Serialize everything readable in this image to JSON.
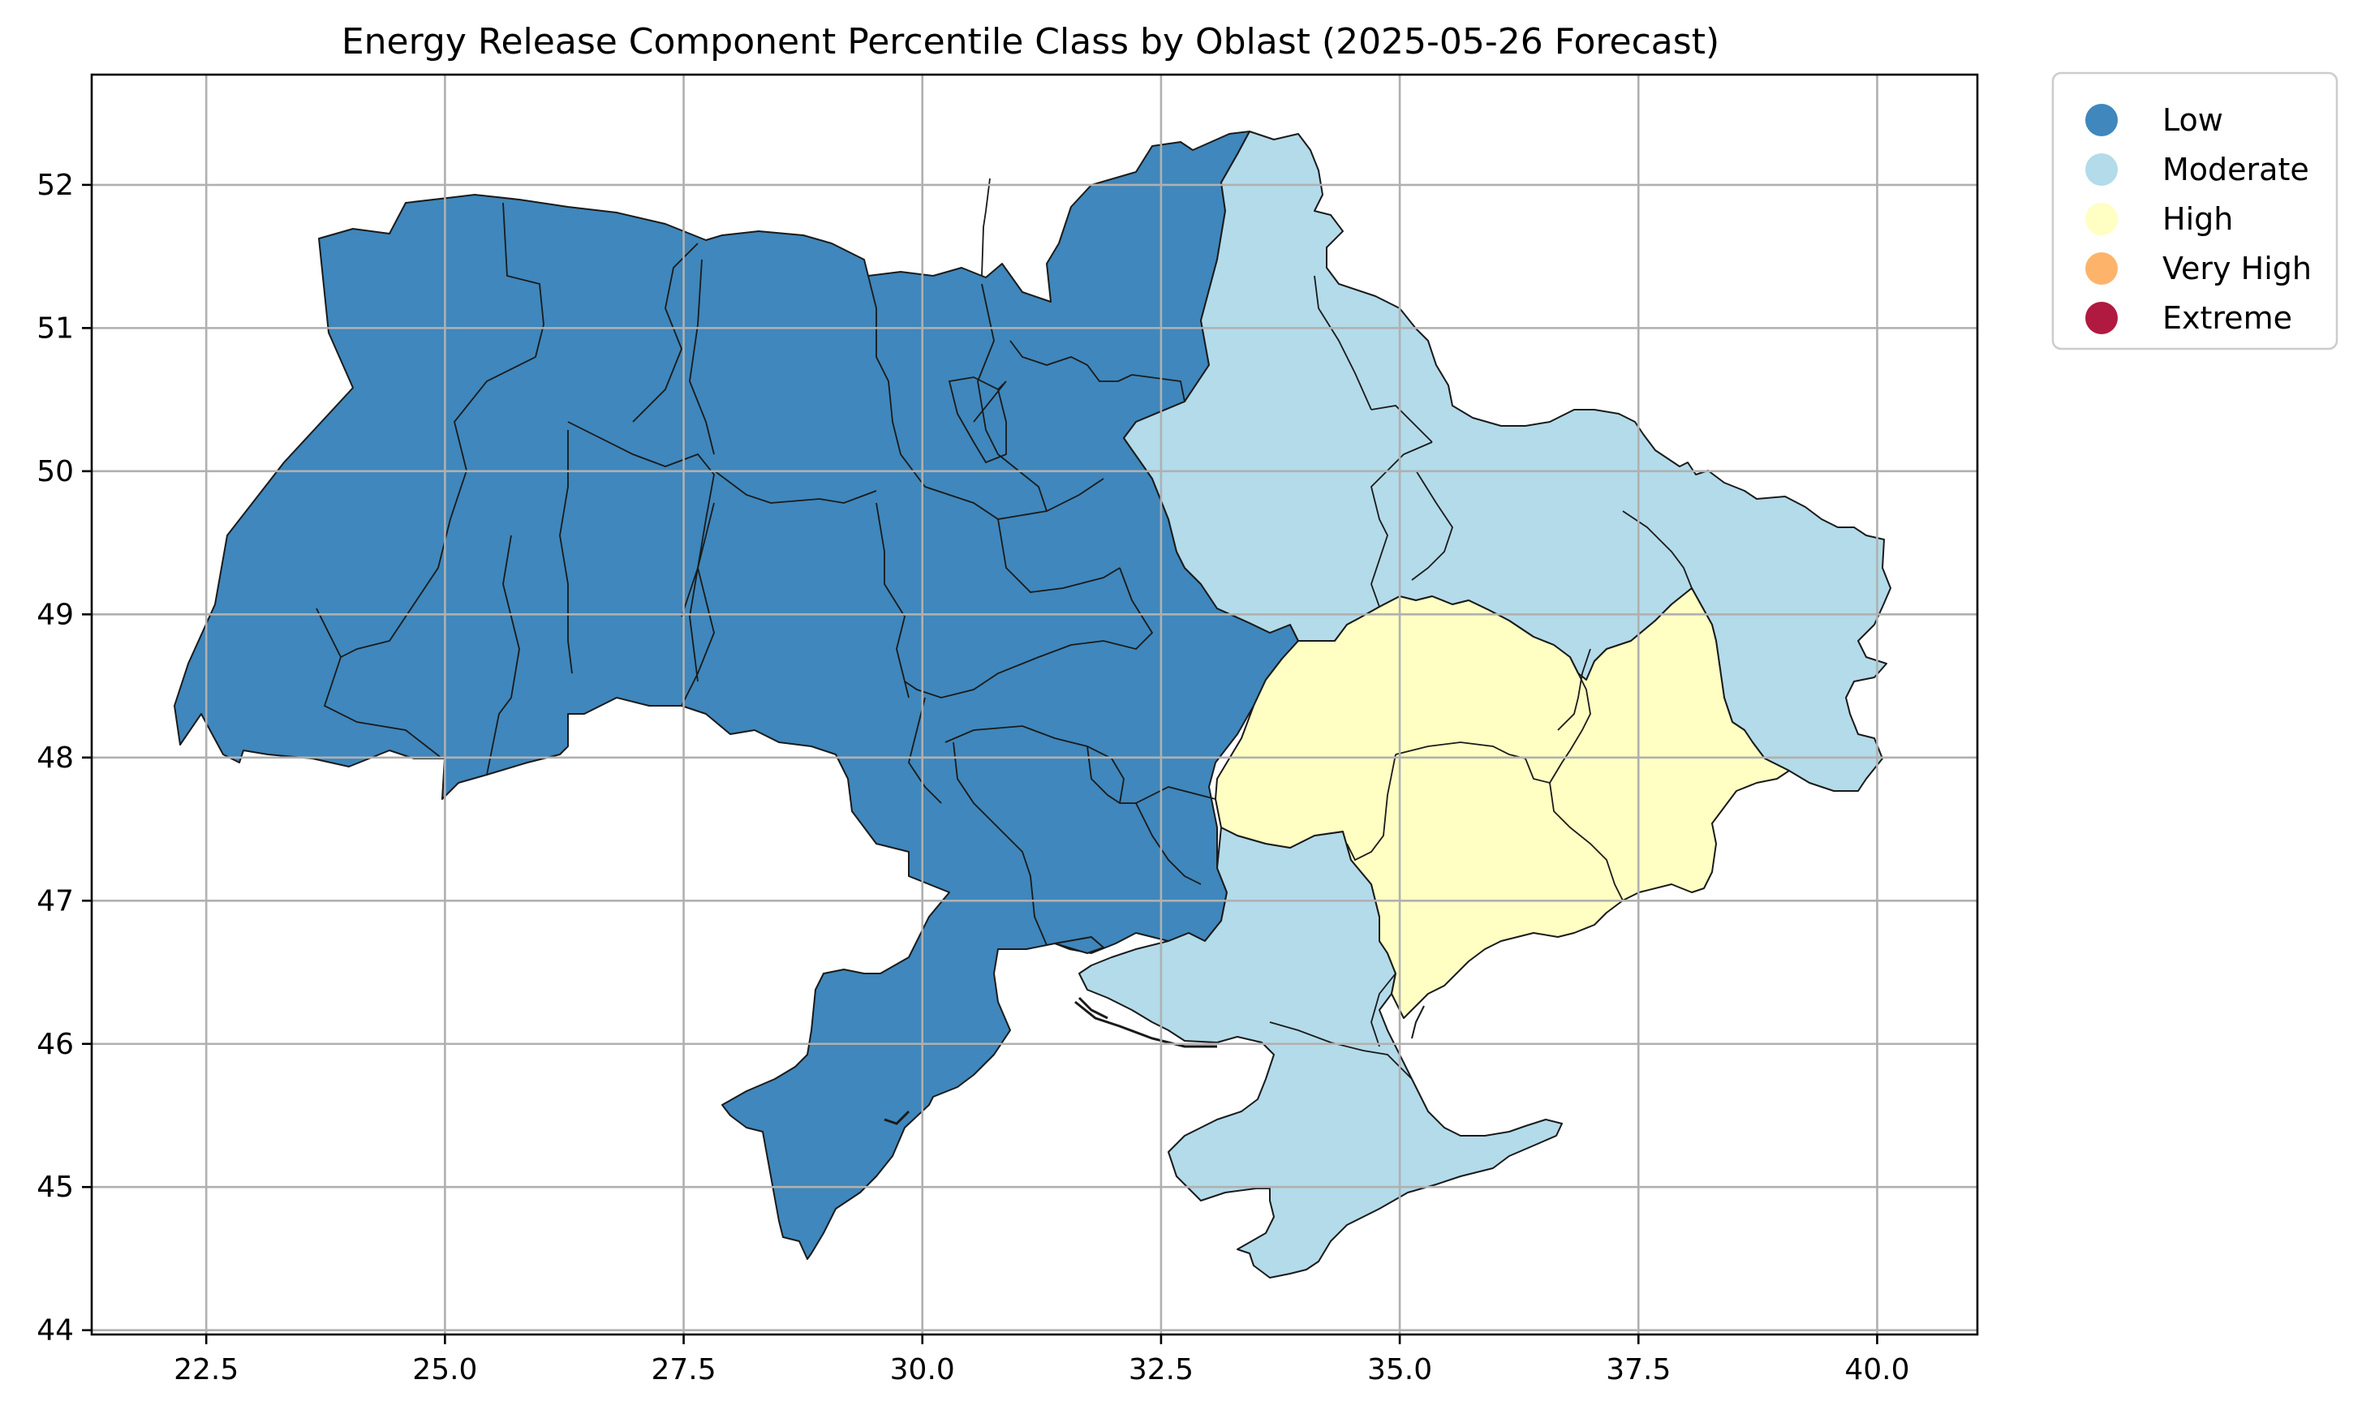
{
  "title": "Energy Release Component Percentile Class by Oblast (2025-05-26 Forecast)",
  "x_ticks": [
    "22.5",
    "25.0",
    "27.5",
    "30.0",
    "32.5",
    "35.0",
    "37.5",
    "40.0"
  ],
  "y_ticks": [
    "44",
    "45",
    "46",
    "47",
    "48",
    "49",
    "50",
    "51",
    "52"
  ],
  "x_tick_values": [
    22.5,
    25.0,
    27.5,
    30.0,
    32.5,
    35.0,
    37.5,
    40.0
  ],
  "y_tick_values": [
    44,
    45,
    46,
    47,
    48,
    49,
    50,
    51,
    52
  ],
  "lon_range": [
    21.3,
    41.05
  ],
  "lat_range": [
    43.97,
    52.77
  ],
  "colors": {
    "Low": "#3f87bc",
    "Moderate": "#b3dbea",
    "High": "#ffffc3",
    "Very High": "#fdb46a",
    "Extreme": "#b01a40"
  },
  "legend": {
    "items": [
      {
        "label": "Low",
        "color": "#3f87bc"
      },
      {
        "label": "Moderate",
        "color": "#b3dbea"
      },
      {
        "label": "High",
        "color": "#ffffc3"
      },
      {
        "label": "Very High",
        "color": "#fdb46a"
      },
      {
        "label": "Extreme",
        "color": "#b01a40"
      }
    ]
  },
  "chart_data": {
    "type": "choropleth",
    "title": "Energy Release Component Percentile Class by Oblast (2025-05-26 Forecast)",
    "xlim": [
      21.3,
      41.05
    ],
    "ylim": [
      43.97,
      52.77
    ],
    "grid": true,
    "legend_position": "outside-top-right",
    "classes": [
      "Low",
      "Moderate",
      "High",
      "Very High",
      "Extreme"
    ]
  }
}
